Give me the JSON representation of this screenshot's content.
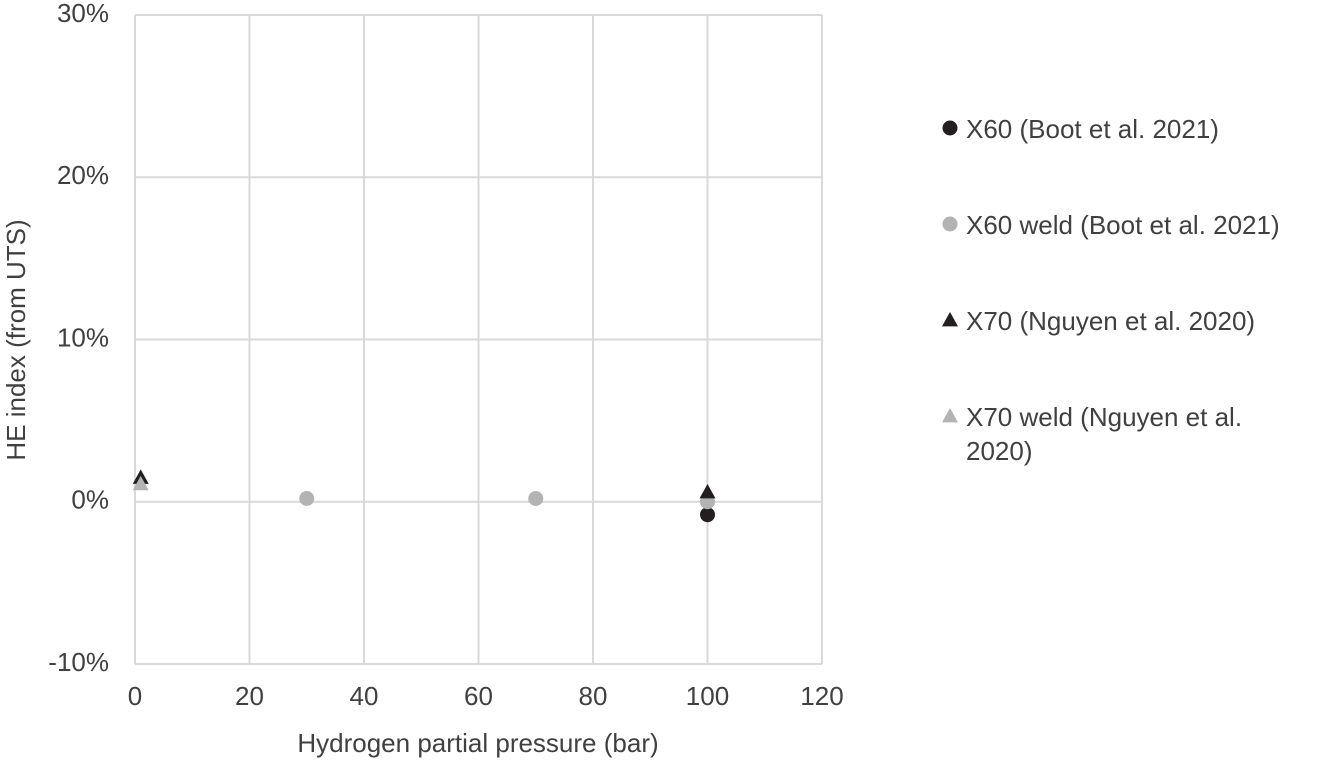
{
  "chart_data": {
    "type": "scatter",
    "x_label": "Hydrogen partial pressure (bar)",
    "y_label": "HE index (from UTS)",
    "xlim": [
      0,
      120
    ],
    "xticks": [
      0,
      20,
      40,
      60,
      80,
      100,
      120
    ],
    "ylim": [
      -10,
      30
    ],
    "yticks": [
      {
        "value": -10,
        "label": "-10%"
      },
      {
        "value": 0,
        "label": "0%"
      },
      {
        "value": 10,
        "label": "10%"
      },
      {
        "value": 20,
        "label": "20%"
      },
      {
        "value": 30,
        "label": "30%"
      }
    ],
    "grid": true,
    "legend": "right",
    "series": [
      {
        "name": "X60 (Boot et al. 2021)",
        "color": "#231f20",
        "marker": "circle",
        "x": [
          100
        ],
        "values": [
          -0.8
        ]
      },
      {
        "name": "X60 weld (Boot et al. 2021)",
        "color": "#b3b3b3",
        "marker": "circle",
        "x": [
          30,
          70,
          100
        ],
        "values": [
          0.2,
          0.2,
          0
        ]
      },
      {
        "name": "X70 (Nguyen et al. 2020)",
        "color": "#231f20",
        "marker": "triangle",
        "x": [
          1,
          100
        ],
        "values": [
          1.5,
          0.6
        ]
      },
      {
        "name": "X70 weld (Nguyen et al. 2020)",
        "color": "#b3b3b3",
        "marker": "triangle",
        "x": [
          1
        ],
        "values": [
          1.1
        ]
      }
    ]
  }
}
